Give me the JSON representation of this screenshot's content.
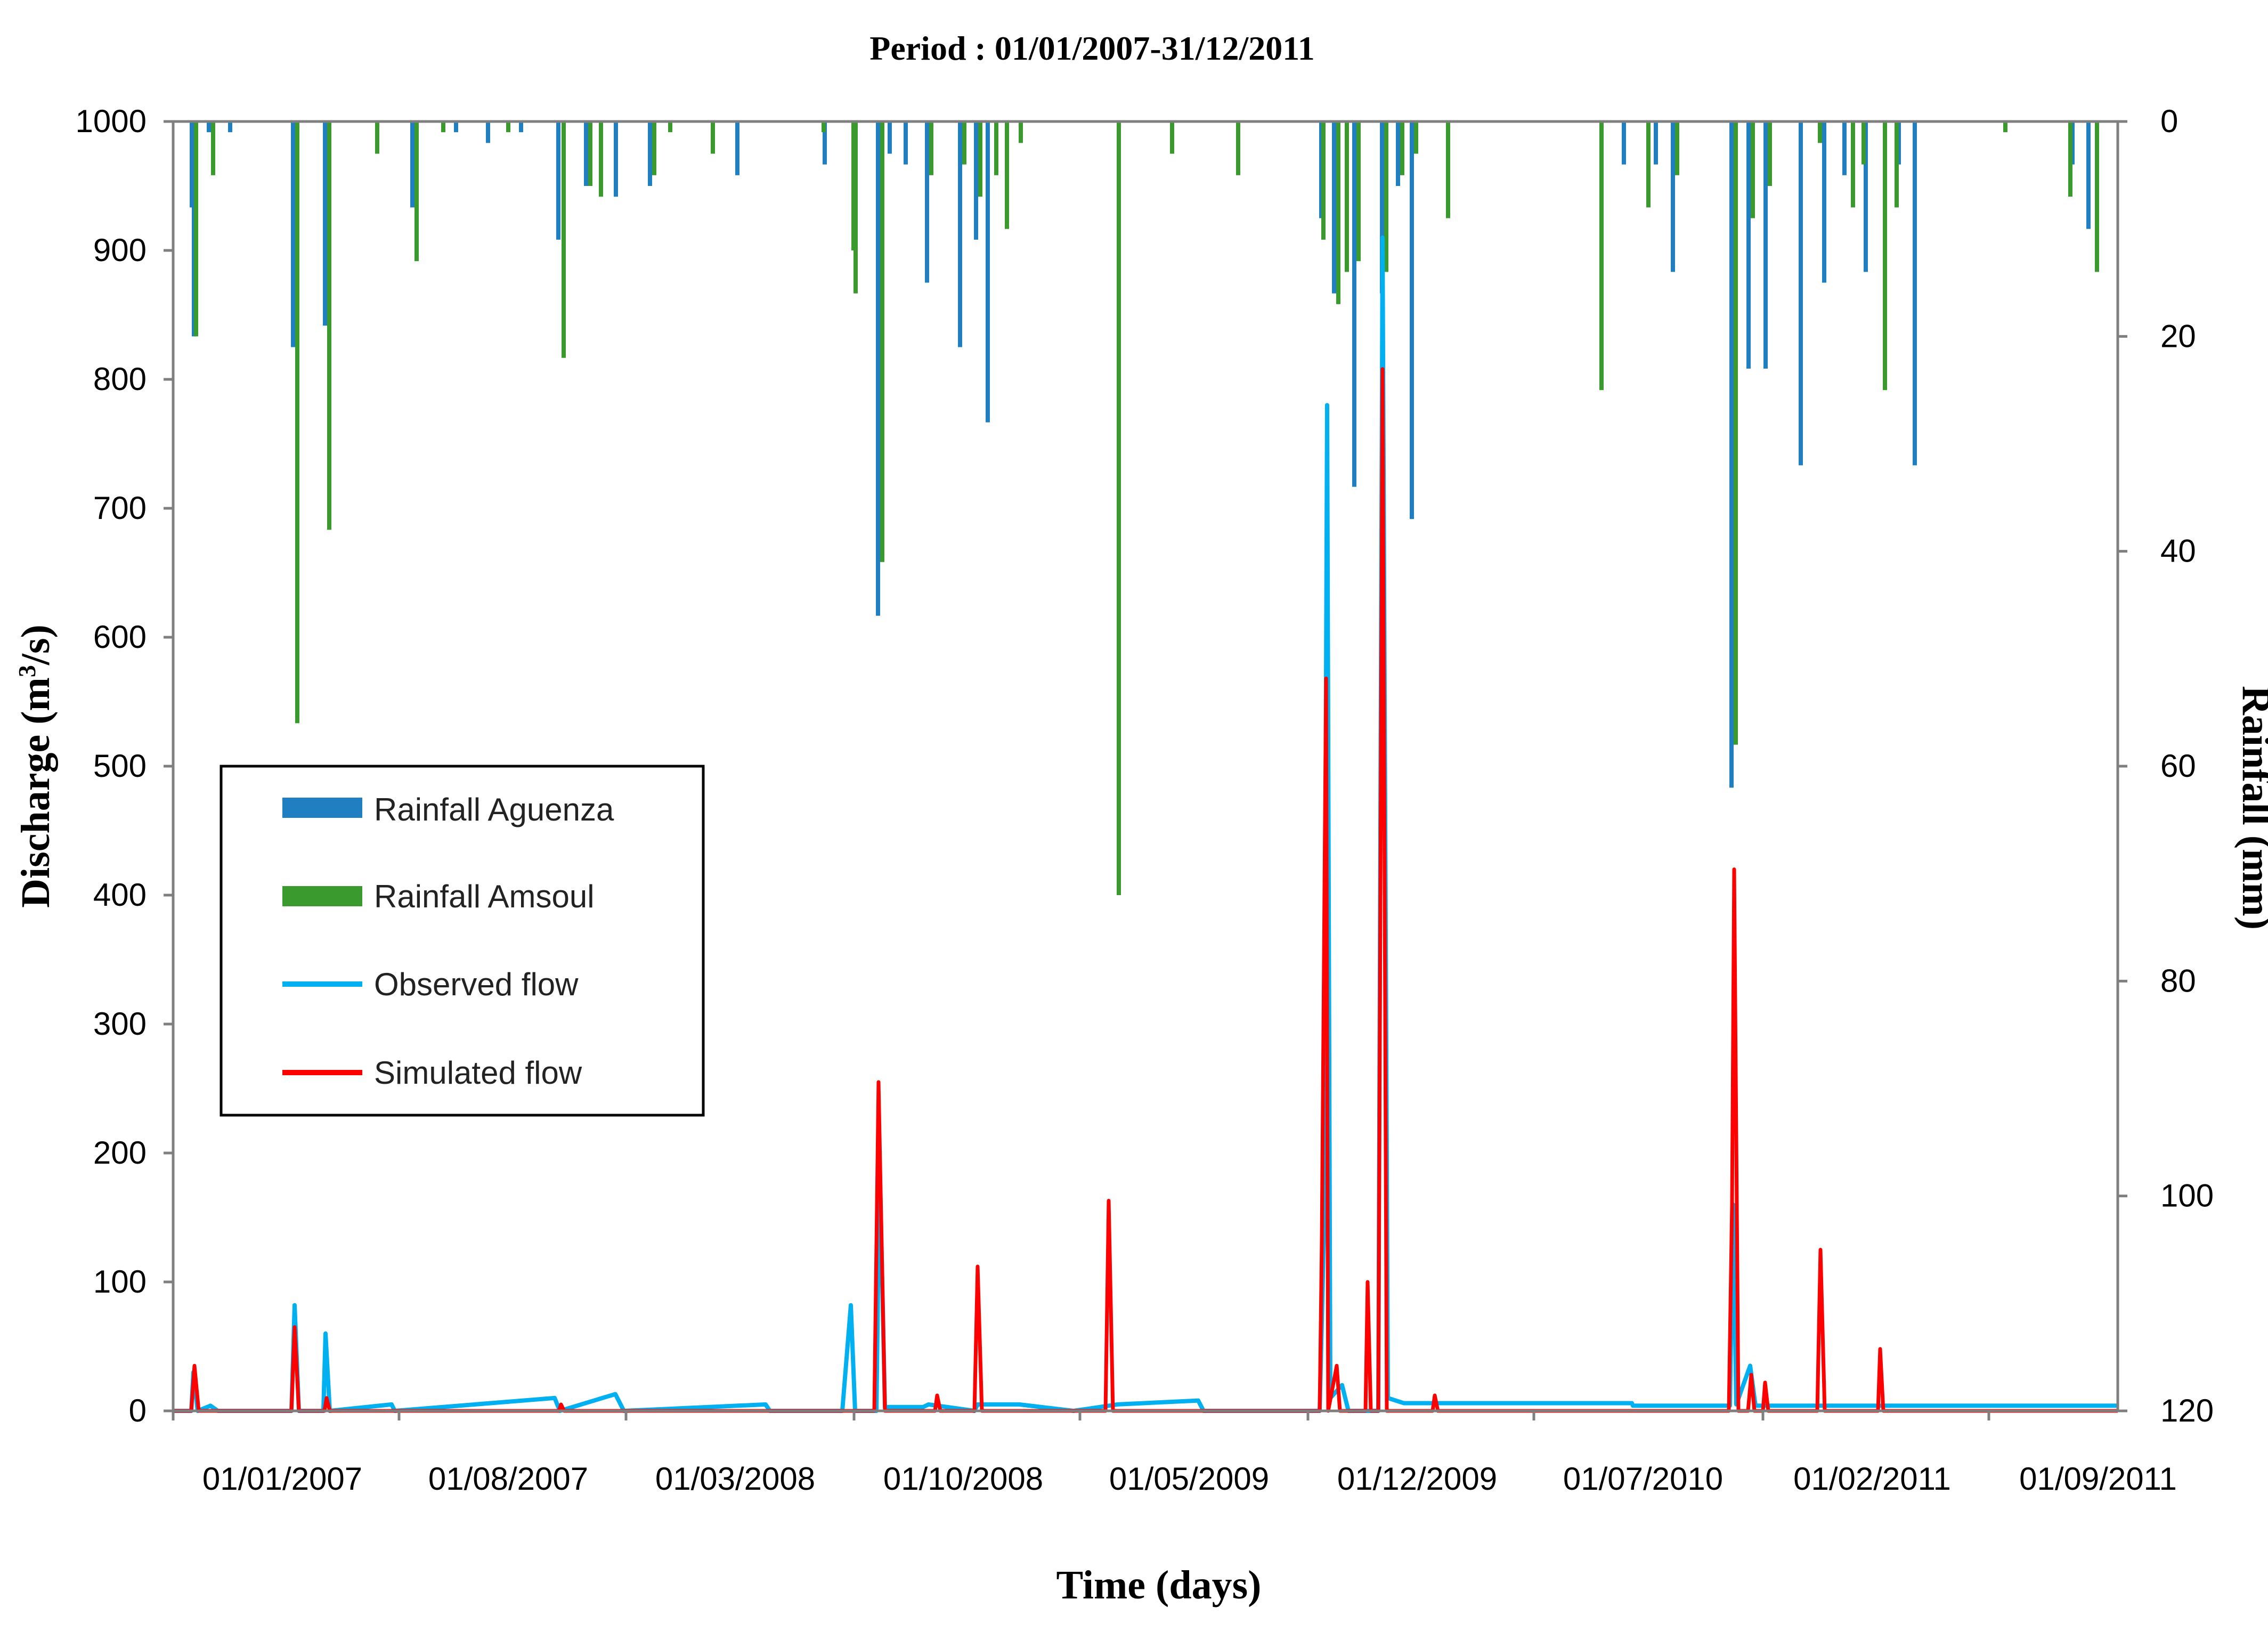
{
  "chart_data": {
    "type": "line",
    "title": "Period : 01/01/2007-31/12/2011",
    "xlabel": "Time (days)",
    "ylabel": "Discharge (m",
    "ylabel_sup": "3",
    "ylabel_suffix": "/s)",
    "y2label": "Rainfall (mm)",
    "x_range": [
      "2007-01-01",
      "2011-12-31"
    ],
    "x_ticks": [
      "2007-01-01",
      "2007-08-01",
      "2008-03-01",
      "2008-10-01",
      "2009-05-01",
      "2009-12-01",
      "2010-07-01",
      "2011-02-01",
      "2011-09-01"
    ],
    "x_tick_labels": [
      "01/01/2007",
      "01/08/2007",
      "01/03/2008",
      "01/10/2008",
      "01/05/2009",
      "01/12/2009",
      "01/07/2010",
      "01/02/2011",
      "01/09/2011"
    ],
    "ylim": [
      0,
      1000
    ],
    "y_ticks": [
      "0",
      "100",
      "200",
      "300",
      "400",
      "500",
      "600",
      "700",
      "800",
      "900",
      "1000"
    ],
    "y2lim": [
      0,
      120
    ],
    "y2_inverted": true,
    "y2_ticks": [
      "0",
      "20",
      "40",
      "60",
      "80",
      "100",
      "120"
    ],
    "grid": false,
    "legend_position": "center-left",
    "legend": [
      {
        "label": "Rainfall Aguenza",
        "kind": "bar",
        "color": "#1f7fc0"
      },
      {
        "label": "Rainfall Amsoul",
        "kind": "bar",
        "color": "#3a9a2e"
      },
      {
        "label": "Observed flow",
        "kind": "line",
        "color": "#00b0f0"
      },
      {
        "label": "Simulated flow",
        "kind": "line",
        "color": "#ff0000"
      }
    ],
    "series": [
      {
        "name": "Rainfall Aguenza",
        "type": "bar",
        "axis": "right",
        "color": "#1f7fc0",
        "points": [
          [
            "2007-01-20",
            8
          ],
          [
            "2007-01-22",
            20
          ],
          [
            "2007-02-05",
            1
          ],
          [
            "2007-02-25",
            1
          ],
          [
            "2007-04-25",
            21
          ],
          [
            "2007-05-25",
            19
          ],
          [
            "2007-08-15",
            8
          ],
          [
            "2007-09-25",
            1
          ],
          [
            "2007-10-25",
            2
          ],
          [
            "2007-11-25",
            1
          ],
          [
            "2007-12-30",
            11
          ],
          [
            "2008-01-25",
            6
          ],
          [
            "2008-02-22",
            7
          ],
          [
            "2008-03-25",
            6
          ],
          [
            "2008-06-15",
            5
          ],
          [
            "2008-09-05",
            4
          ],
          [
            "2008-10-25",
            46
          ],
          [
            "2008-11-05",
            3
          ],
          [
            "2008-11-20",
            4
          ],
          [
            "2008-12-10",
            15
          ],
          [
            "2009-01-10",
            21
          ],
          [
            "2009-01-25",
            11
          ],
          [
            "2009-02-05",
            28
          ],
          [
            "2009-12-15",
            9
          ],
          [
            "2009-12-27",
            16
          ],
          [
            "2010-01-15",
            34
          ],
          [
            "2010-02-10",
            16
          ],
          [
            "2010-02-25",
            6
          ],
          [
            "2010-03-10",
            37
          ],
          [
            "2010-09-25",
            4
          ],
          [
            "2010-10-25",
            4
          ],
          [
            "2010-11-10",
            14
          ],
          [
            "2011-01-04",
            62
          ],
          [
            "2011-01-20",
            23
          ],
          [
            "2011-02-05",
            23
          ],
          [
            "2011-03-10",
            32
          ],
          [
            "2011-04-01",
            15
          ],
          [
            "2011-04-20",
            5
          ],
          [
            "2011-05-10",
            14
          ],
          [
            "2011-06-10",
            4
          ],
          [
            "2011-06-25",
            32
          ],
          [
            "2011-11-20",
            4
          ],
          [
            "2011-12-05",
            10
          ]
        ]
      },
      {
        "name": "Rainfall Amsoul",
        "type": "bar",
        "axis": "right",
        "color": "#3a9a2e",
        "points": [
          [
            "2007-01-21",
            20
          ],
          [
            "2007-02-06",
            5
          ],
          [
            "2007-04-26",
            56
          ],
          [
            "2007-05-26",
            38
          ],
          [
            "2007-07-10",
            3
          ],
          [
            "2007-08-16",
            13
          ],
          [
            "2007-09-10",
            1
          ],
          [
            "2007-11-10",
            1
          ],
          [
            "2008-01-01",
            22
          ],
          [
            "2008-01-26",
            6
          ],
          [
            "2008-02-05",
            7
          ],
          [
            "2008-03-26",
            5
          ],
          [
            "2008-04-10",
            1
          ],
          [
            "2008-05-20",
            3
          ],
          [
            "2008-09-01",
            1
          ],
          [
            "2008-09-29",
            12
          ],
          [
            "2008-10-01",
            16
          ],
          [
            "2008-10-26",
            41
          ],
          [
            "2008-12-11",
            5
          ],
          [
            "2009-01-11",
            4
          ],
          [
            "2009-01-26",
            7
          ],
          [
            "2009-02-10",
            5
          ],
          [
            "2009-02-20",
            10
          ],
          [
            "2009-03-05",
            2
          ],
          [
            "2009-06-05",
            72
          ],
          [
            "2009-07-25",
            3
          ],
          [
            "2009-09-25",
            5
          ],
          [
            "2009-12-14",
            11
          ],
          [
            "2009-12-28",
            17
          ],
          [
            "2010-01-05",
            14
          ],
          [
            "2010-01-16",
            13
          ],
          [
            "2010-02-11",
            14
          ],
          [
            "2010-02-26",
            5
          ],
          [
            "2010-03-11",
            3
          ],
          [
            "2010-04-10",
            9
          ],
          [
            "2010-09-01",
            25
          ],
          [
            "2010-10-15",
            8
          ],
          [
            "2010-11-11",
            5
          ],
          [
            "2011-01-05",
            58
          ],
          [
            "2011-01-21",
            9
          ],
          [
            "2011-02-06",
            6
          ],
          [
            "2011-03-25",
            2
          ],
          [
            "2011-04-25",
            8
          ],
          [
            "2011-05-05",
            4
          ],
          [
            "2011-05-25",
            25
          ],
          [
            "2011-06-05",
            8
          ],
          [
            "2011-09-15",
            1
          ],
          [
            "2011-11-15",
            7
          ],
          [
            "2011-12-10",
            14
          ]
        ]
      },
      {
        "name": "Observed flow",
        "type": "line",
        "axis": "left",
        "color": "#00b0f0",
        "points": [
          [
            "2007-01-01",
            0
          ],
          [
            "2007-01-18",
            0
          ],
          [
            "2007-01-20",
            30
          ],
          [
            "2007-01-24",
            0
          ],
          [
            "2007-02-05",
            4
          ],
          [
            "2007-02-12",
            0
          ],
          [
            "2007-04-22",
            0
          ],
          [
            "2007-04-25",
            82
          ],
          [
            "2007-04-29",
            0
          ],
          [
            "2007-05-22",
            0
          ],
          [
            "2007-05-24",
            60
          ],
          [
            "2007-05-28",
            0
          ],
          [
            "2007-07-25",
            5
          ],
          [
            "2007-07-28",
            0
          ],
          [
            "2007-12-25",
            10
          ],
          [
            "2007-12-30",
            0
          ],
          [
            "2008-02-20",
            13
          ],
          [
            "2008-02-28",
            0
          ],
          [
            "2008-07-10",
            5
          ],
          [
            "2008-07-14",
            0
          ],
          [
            "2008-09-20",
            0
          ],
          [
            "2008-09-28",
            82
          ],
          [
            "2008-10-02",
            0
          ],
          [
            "2008-10-22",
            0
          ],
          [
            "2008-10-25",
            195
          ],
          [
            "2008-10-30",
            3
          ],
          [
            "2008-11-25",
            3
          ],
          [
            "2008-12-05",
            3
          ],
          [
            "2008-12-10",
            5
          ],
          [
            "2009-01-22",
            0
          ],
          [
            "2009-01-25",
            5
          ],
          [
            "2009-02-10",
            5
          ],
          [
            "2009-03-05",
            5
          ],
          [
            "2009-04-25",
            0
          ],
          [
            "2009-06-05",
            5
          ],
          [
            "2009-08-20",
            8
          ],
          [
            "2009-08-25",
            0
          ],
          [
            "2009-12-12",
            0
          ],
          [
            "2009-12-16",
            140
          ],
          [
            "2009-12-19",
            780
          ],
          [
            "2009-12-22",
            10
          ],
          [
            "2010-01-02",
            20
          ],
          [
            "2010-01-08",
            0
          ],
          [
            "2010-02-05",
            0
          ],
          [
            "2010-02-09",
            910
          ],
          [
            "2010-02-14",
            10
          ],
          [
            "2010-03-01",
            6
          ],
          [
            "2010-10-01",
            6
          ],
          [
            "2010-10-02",
            4
          ],
          [
            "2011-01-01",
            4
          ],
          [
            "2011-01-04",
            160
          ],
          [
            "2011-01-07",
            5
          ],
          [
            "2011-01-20",
            35
          ],
          [
            "2011-01-25",
            4
          ],
          [
            "2011-12-31",
            4
          ]
        ]
      },
      {
        "name": "Simulated flow",
        "type": "line",
        "axis": "left",
        "color": "#ff0000",
        "points": [
          [
            "2007-01-01",
            0
          ],
          [
            "2007-01-18",
            0
          ],
          [
            "2007-01-21",
            35
          ],
          [
            "2007-01-25",
            0
          ],
          [
            "2007-04-22",
            0
          ],
          [
            "2007-04-25",
            65
          ],
          [
            "2007-04-29",
            0
          ],
          [
            "2007-05-23",
            0
          ],
          [
            "2007-05-25",
            10
          ],
          [
            "2007-05-28",
            0
          ],
          [
            "2007-12-29",
            0
          ],
          [
            "2007-12-31",
            5
          ],
          [
            "2008-01-03",
            0
          ],
          [
            "2008-10-20",
            0
          ],
          [
            "2008-10-24",
            255
          ],
          [
            "2008-10-30",
            0
          ],
          [
            "2008-12-16",
            0
          ],
          [
            "2008-12-18",
            12
          ],
          [
            "2008-12-21",
            0
          ],
          [
            "2009-01-22",
            0
          ],
          [
            "2009-01-25",
            112
          ],
          [
            "2009-01-29",
            0
          ],
          [
            "2009-05-25",
            0
          ],
          [
            "2009-05-28",
            163
          ],
          [
            "2009-06-01",
            0
          ],
          [
            "2009-12-12",
            0
          ],
          [
            "2009-12-14",
            130
          ],
          [
            "2009-12-18",
            568
          ],
          [
            "2009-12-20",
            0
          ],
          [
            "2009-12-28",
            35
          ],
          [
            "2009-12-31",
            0
          ],
          [
            "2010-01-24",
            0
          ],
          [
            "2010-01-26",
            100
          ],
          [
            "2010-01-29",
            0
          ],
          [
            "2010-02-05",
            0
          ],
          [
            "2010-02-09",
            808
          ],
          [
            "2010-02-13",
            0
          ],
          [
            "2010-03-28",
            0
          ],
          [
            "2010-03-30",
            12
          ],
          [
            "2010-04-02",
            0
          ],
          [
            "2010-12-31",
            0
          ],
          [
            "2011-01-03",
            160
          ],
          [
            "2011-01-05",
            420
          ],
          [
            "2011-01-09",
            0
          ],
          [
            "2011-01-18",
            0
          ],
          [
            "2011-01-21",
            28
          ],
          [
            "2011-01-24",
            0
          ],
          [
            "2011-02-01",
            0
          ],
          [
            "2011-02-03",
            22
          ],
          [
            "2011-02-06",
            0
          ],
          [
            "2011-03-24",
            0
          ],
          [
            "2011-03-27",
            125
          ],
          [
            "2011-03-31",
            0
          ],
          [
            "2011-05-20",
            0
          ],
          [
            "2011-05-22",
            48
          ],
          [
            "2011-05-25",
            0
          ],
          [
            "2011-12-31",
            0
          ]
        ]
      }
    ]
  }
}
